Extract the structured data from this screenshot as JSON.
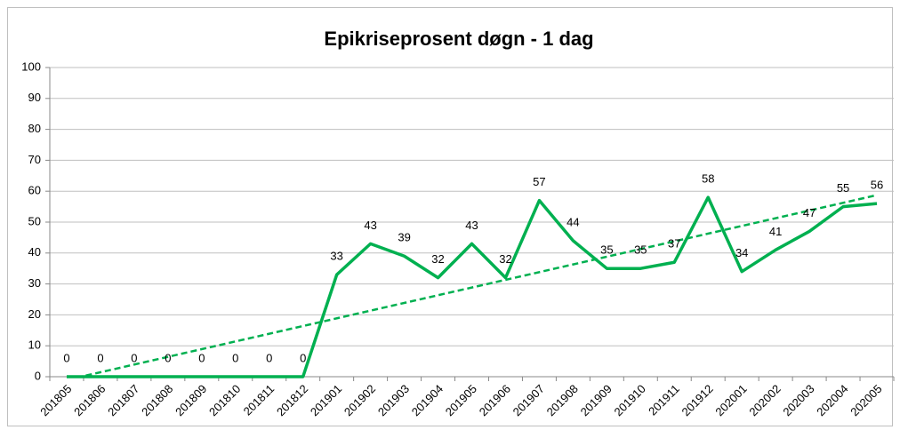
{
  "chart_data": {
    "type": "line",
    "title": "Epikriseprosent døgn - 1 dag",
    "categories": [
      "201805",
      "201806",
      "201807",
      "201808",
      "201809",
      "201810",
      "201811",
      "201812",
      "201901",
      "201902",
      "201903",
      "201904",
      "201905",
      "201906",
      "201907",
      "201908",
      "201909",
      "201910",
      "201911",
      "201912",
      "202001",
      "202002",
      "202003",
      "202004",
      "202005"
    ],
    "values": [
      0,
      0,
      0,
      0,
      0,
      0,
      0,
      0,
      33,
      43,
      39,
      32,
      43,
      32,
      57,
      44,
      35,
      35,
      37,
      58,
      34,
      41,
      47,
      55,
      56
    ],
    "color": "#00b050",
    "trendline": "linear",
    "ylim": [
      0,
      100
    ],
    "yticks": [
      0,
      10,
      20,
      30,
      40,
      50,
      60,
      70,
      80,
      90,
      100
    ],
    "grid": true
  }
}
